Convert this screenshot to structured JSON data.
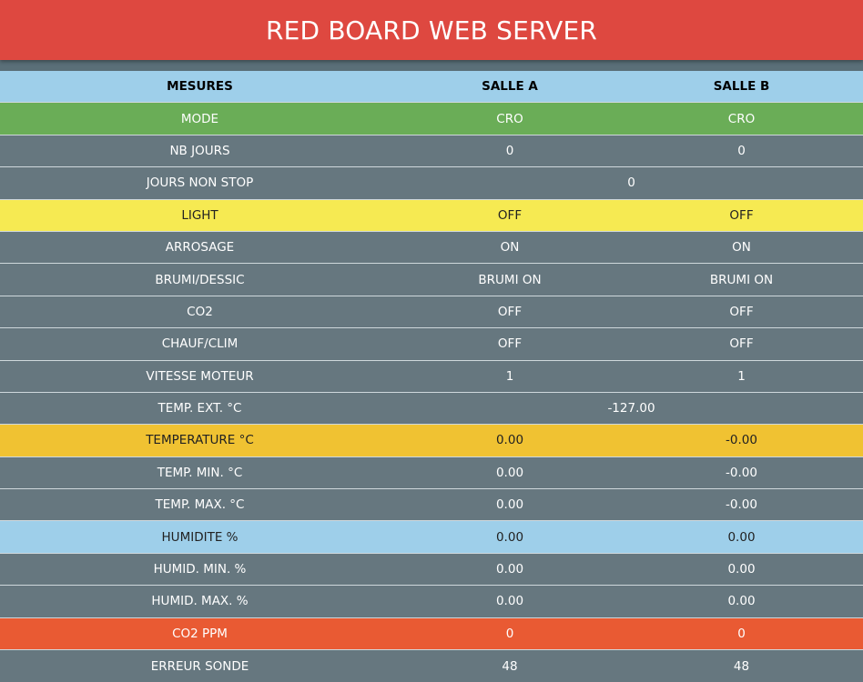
{
  "header": {
    "title": "RED BOARD WEB SERVER"
  },
  "columns": {
    "mesures": "MESURES",
    "salle_a": "SALLE A",
    "salle_b": "SALLE B"
  },
  "colors": {
    "header_bg": "#de4840",
    "table_header_bg": "#9ecfea",
    "mode_bg": "#6aad57",
    "row_bg": "#66777f",
    "light_bg": "#f6ea52",
    "temperature_bg": "#f0c232",
    "humidite_bg": "#9ecfea",
    "co2ppm_bg": "#e95a33"
  },
  "rows": [
    {
      "label": "MODE",
      "a": "CRO",
      "b": "CRO"
    },
    {
      "label": "NB JOURS",
      "a": "0",
      "b": "0"
    },
    {
      "label": "JOURS NON STOP",
      "shared": "0"
    },
    {
      "label": "LIGHT",
      "a": "OFF",
      "b": "OFF"
    },
    {
      "label": "ARROSAGE",
      "a": "ON",
      "b": "ON"
    },
    {
      "label": "BRUMI/DESSIC",
      "a": "BRUMI ON",
      "b": "BRUMI ON"
    },
    {
      "label": "CO2",
      "a": "OFF",
      "b": "OFF"
    },
    {
      "label": "CHAUF/CLIM",
      "a": "OFF",
      "b": "OFF"
    },
    {
      "label": "VITESSE MOTEUR",
      "a": "1",
      "b": "1"
    },
    {
      "label": "TEMP. EXT. °C",
      "shared": "-127.00"
    },
    {
      "label": "TEMPERATURE °C",
      "a": "0.00",
      "b": "-0.00"
    },
    {
      "label": "TEMP. MIN. °C",
      "a": "0.00",
      "b": "-0.00"
    },
    {
      "label": "TEMP. MAX. °C",
      "a": "0.00",
      "b": "-0.00"
    },
    {
      "label": "HUMIDITE %",
      "a": "0.00",
      "b": "0.00"
    },
    {
      "label": "HUMID. MIN. %",
      "a": "0.00",
      "b": "0.00"
    },
    {
      "label": "HUMID. MAX. %",
      "a": "0.00",
      "b": "0.00"
    },
    {
      "label": "CO2 PPM",
      "a": "0",
      "b": "0"
    },
    {
      "label": "ERREUR SONDE",
      "a": "48",
      "b": "48"
    }
  ]
}
